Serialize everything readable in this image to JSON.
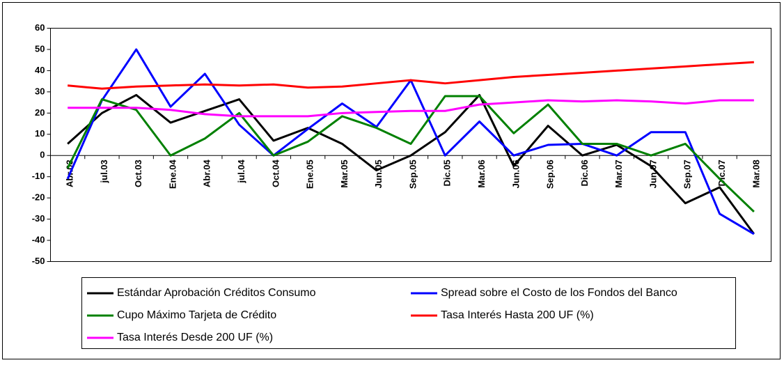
{
  "chart_data": {
    "type": "line",
    "categories": [
      "Abr.03",
      "jul.03",
      "Oct.03",
      "Ene.04",
      "Abr.04",
      "jul.04",
      "Oct.04",
      "Ene.05",
      "Mar.05",
      "Jun.05",
      "Sep.05",
      "Dic.05",
      "Mar.06",
      "Jun.06",
      "Sep.06",
      "Dic.06",
      "Mar.07",
      "Jun.07",
      "Sep.07",
      "Dic.07",
      "Mar.08"
    ],
    "series": [
      {
        "name": "Estándar Aprobación Créditos Consumo",
        "color": "#000000",
        "values": [
          5.5,
          20,
          28.5,
          15.5,
          21,
          26.5,
          7,
          13,
          5.5,
          -7,
          0,
          11,
          28.5,
          -5,
          14,
          0,
          5,
          -5,
          -22.5,
          -15,
          -37
        ]
      },
      {
        "name": "Spread sobre el Costo de los Fondos del Banco",
        "color": "#0000ff",
        "values": [
          -11,
          26,
          50,
          23,
          38.5,
          14.5,
          0,
          12.5,
          24.5,
          13.5,
          35.5,
          0,
          16,
          0,
          5,
          5.5,
          0,
          11,
          11,
          -27.5,
          -37
        ]
      },
      {
        "name": "Cupo Máximo Tarjeta de Crédito",
        "color": "#008000",
        "values": [
          -6,
          26.5,
          21.5,
          0,
          8,
          20,
          0,
          6.5,
          18.5,
          13,
          5.5,
          28,
          28,
          10.5,
          24,
          5.5,
          5.5,
          0,
          5.5,
          -11,
          -26.5
        ]
      },
      {
        "name": "Tasa Interés Hasta 200 UF (%)",
        "color": "#ff0000",
        "values": [
          33,
          31.5,
          32.5,
          33,
          33.5,
          33,
          33.5,
          32,
          32.5,
          34,
          35.5,
          34,
          35.5,
          37,
          38,
          39,
          40,
          41,
          42,
          43,
          44
        ]
      },
      {
        "name": "Tasa Interés Desde 200 UF (%)",
        "color": "#ff00ff",
        "values": [
          22.5,
          22.5,
          22.5,
          21.5,
          19.5,
          18.5,
          18.5,
          18.5,
          20,
          20.5,
          21,
          21,
          24,
          25,
          26,
          25.5,
          26,
          25.5,
          24.5,
          26,
          26
        ]
      }
    ],
    "ylim": [
      -50,
      60
    ],
    "yticks": [
      -50,
      -40,
      -30,
      -20,
      -10,
      0,
      10,
      20,
      30,
      40,
      50,
      60
    ],
    "grid": false
  }
}
